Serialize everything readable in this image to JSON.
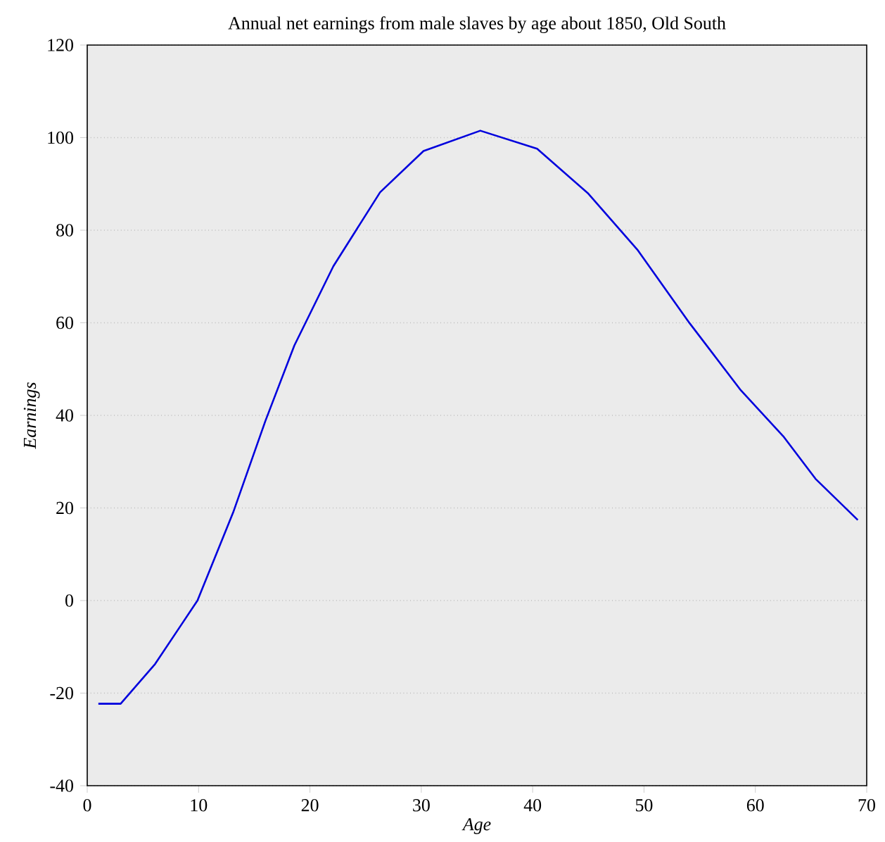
{
  "chart_data": {
    "type": "line",
    "title": "Annual net earnings from male slaves by age about 1850, Old South",
    "xlabel": "Age",
    "ylabel": "Earnings",
    "x": [
      1.0,
      3.0,
      6.1,
      9.9,
      13.1,
      16.0,
      18.6,
      22.1,
      26.3,
      30.2,
      35.3,
      40.4,
      45.0,
      49.4,
      54.1,
      58.7,
      62.5,
      65.4,
      69.2
    ],
    "series": [
      {
        "color": "#0000dd",
        "values": [
          -22.3,
          -22.3,
          -13.7,
          0,
          19,
          38.8,
          55.1,
          72.2,
          88.2,
          97.1,
          101.5,
          97.6,
          87.9,
          75.8,
          59.9,
          45.4,
          35.5,
          26.3,
          17.4
        ]
      }
    ],
    "xlim": [
      0,
      70
    ],
    "ylim": [
      -40,
      120
    ],
    "xticks": [
      0,
      10,
      20,
      30,
      40,
      50,
      60,
      70
    ],
    "yticks": [
      -40,
      -20,
      0,
      20,
      40,
      60,
      80,
      100,
      120
    ],
    "grid": "y",
    "line_style": "solid",
    "marker": "none"
  }
}
